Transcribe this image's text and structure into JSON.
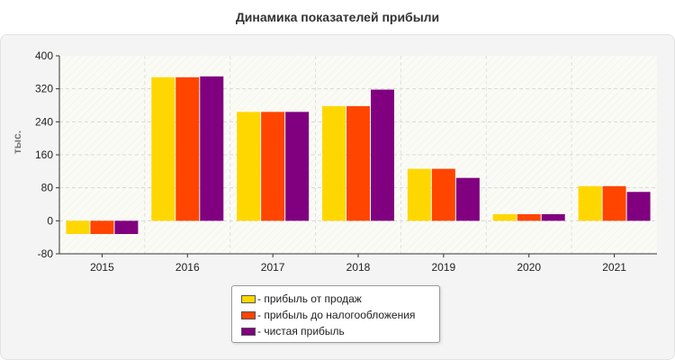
{
  "chart_data": {
    "type": "bar",
    "title": "Динамика показателей прибыли",
    "ylabel": "тыс.",
    "xlabel": "",
    "categories": [
      "2015",
      "2016",
      "2017",
      "2018",
      "2019",
      "2020",
      "2021"
    ],
    "ylim": [
      -80,
      400
    ],
    "yticks": [
      "400",
      "320",
      "240",
      "160",
      "80",
      "0",
      "-80"
    ],
    "grid": true,
    "legend_position": "bottom-center",
    "series": [
      {
        "name": "- прибыль от продаж",
        "color": "#FFD700",
        "values": [
          -32,
          348,
          264,
          278,
          126,
          16,
          84
        ]
      },
      {
        "name": "- прибыль до налогообложения",
        "color": "#FF4500",
        "values": [
          -32,
          348,
          264,
          278,
          126,
          16,
          84
        ]
      },
      {
        "name": "- чистая прибыль",
        "color": "#800080",
        "values": [
          -32,
          350,
          264,
          318,
          104,
          16,
          70
        ]
      }
    ]
  }
}
